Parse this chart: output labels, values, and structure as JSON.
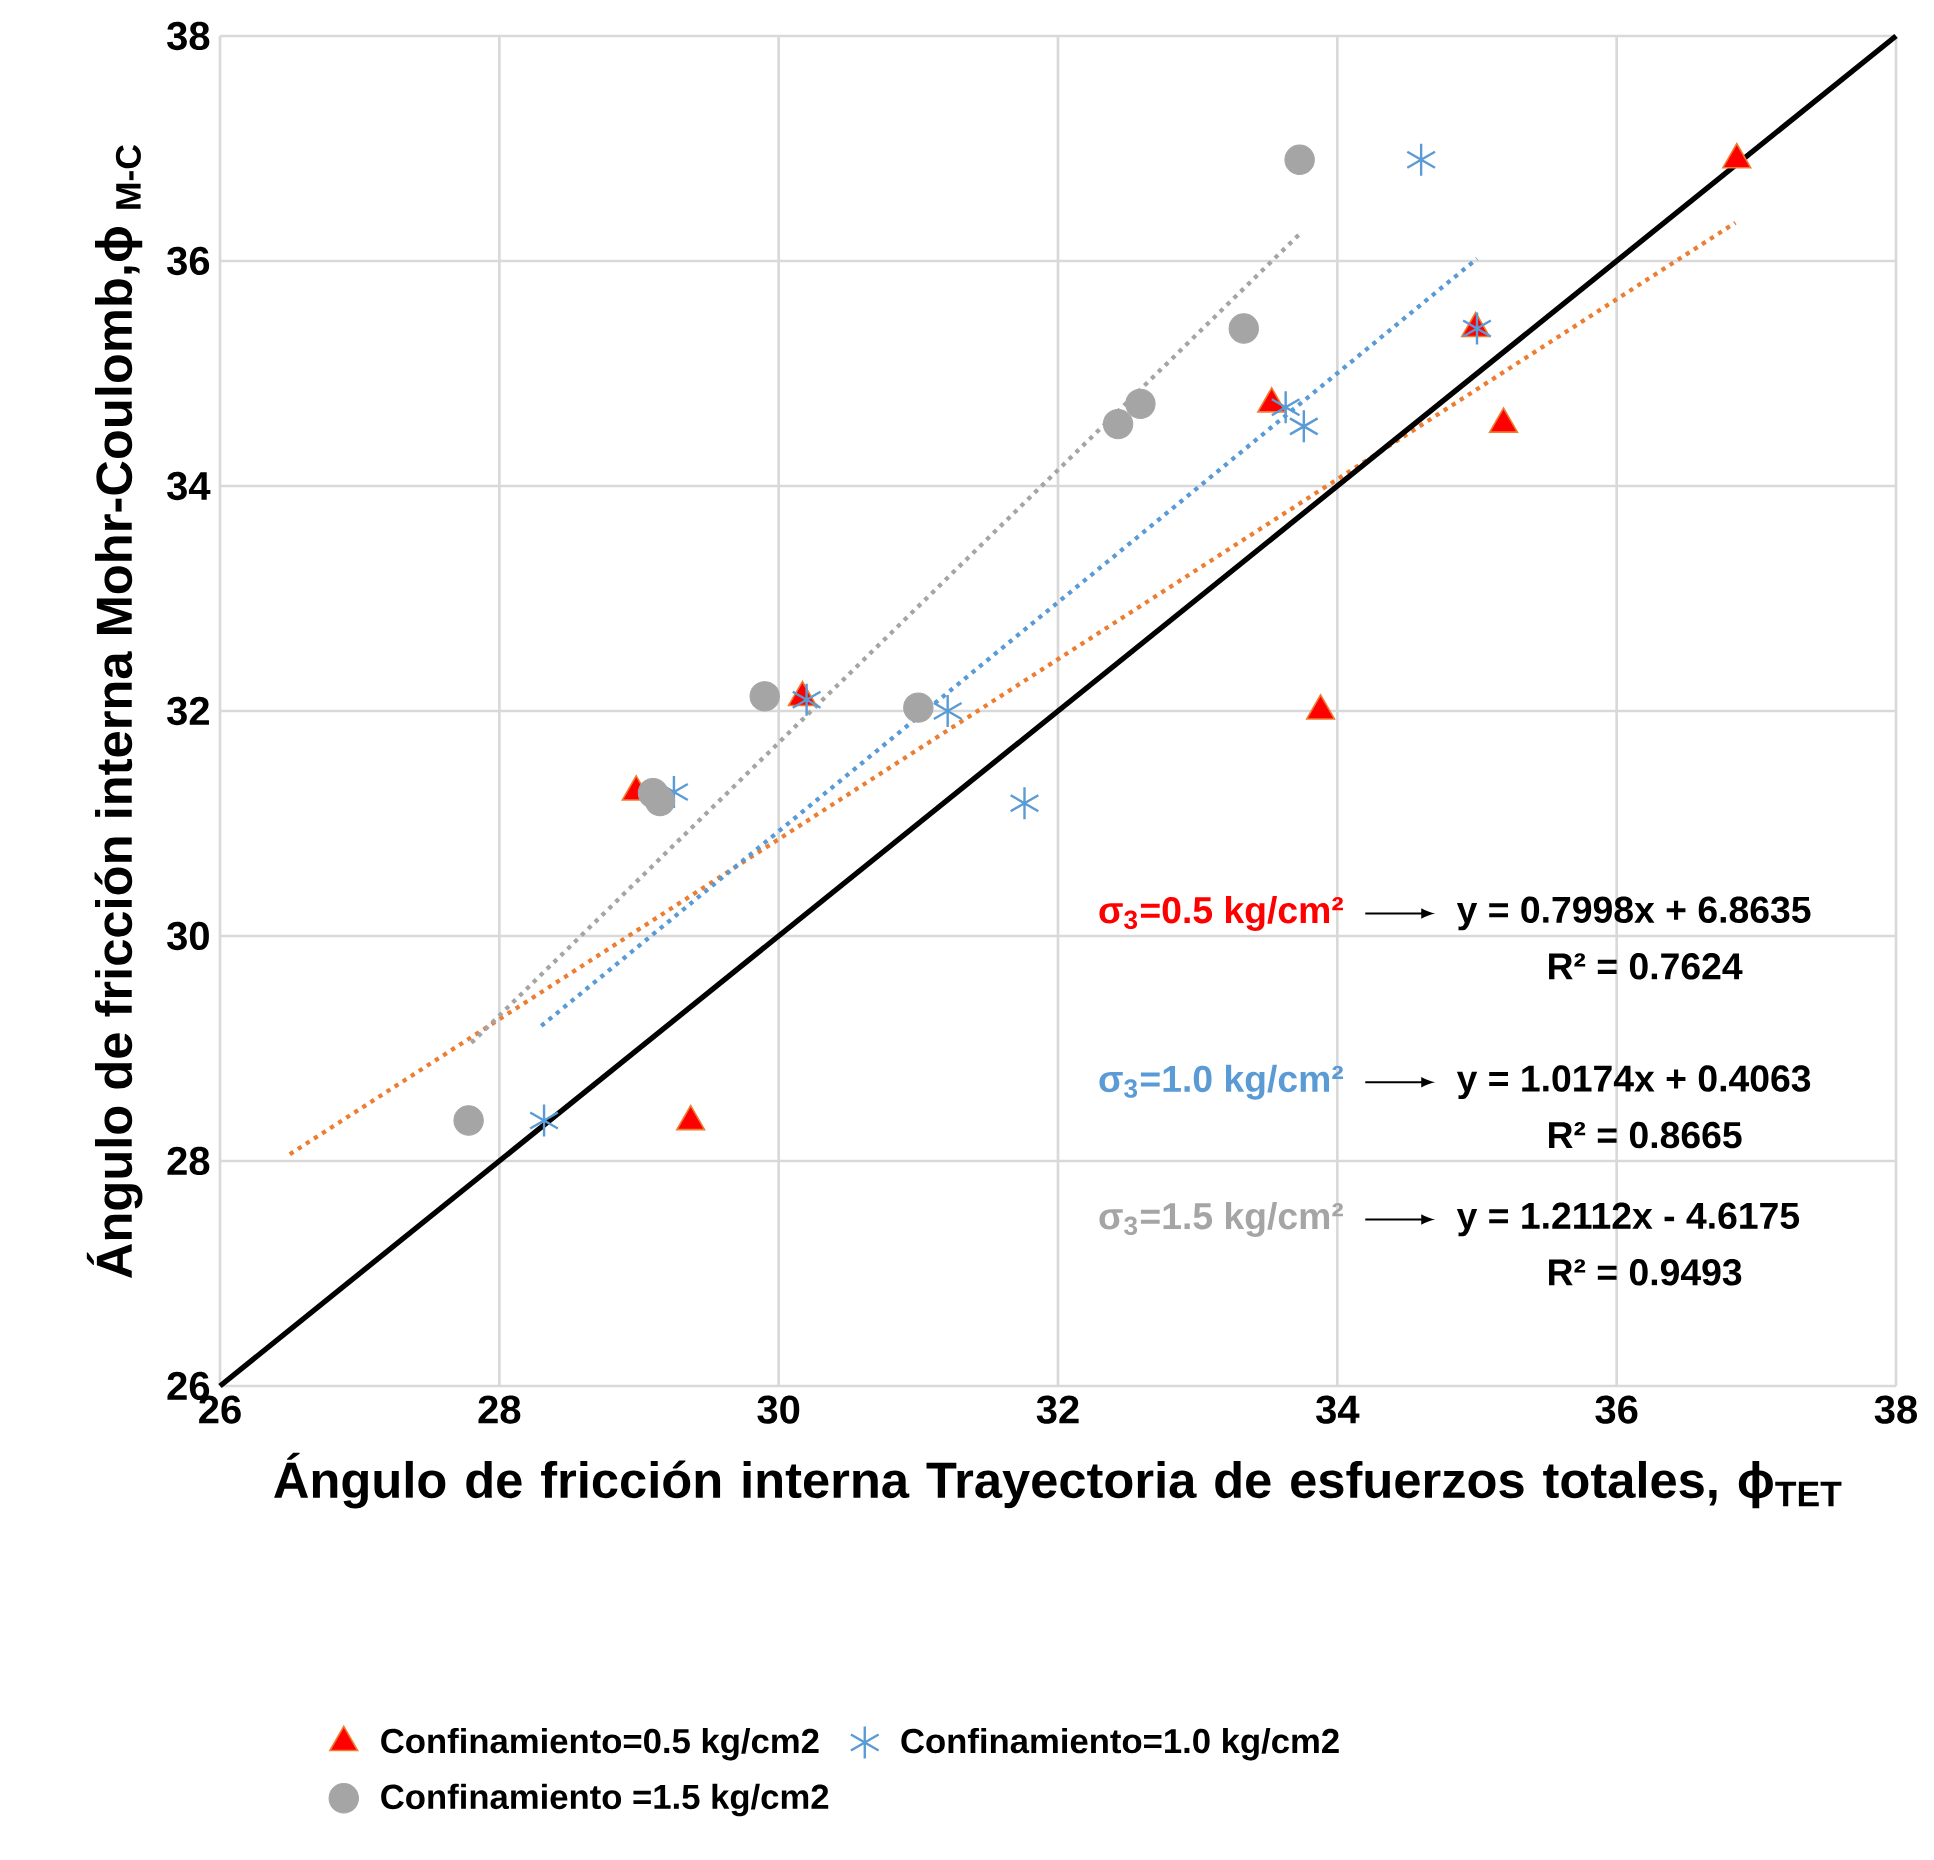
{
  "chart_data": {
    "type": "scatter",
    "xlabel": "Ángulo de fricción interna Trayectoria de esfuerzos totales, ϕ$_{TET}$",
    "ylabel": "Ángulo de fricción interna Mohr-Coulomb,ϕ $_{M-C}$",
    "xlim": [
      26,
      38
    ],
    "ylim": [
      26,
      38
    ],
    "xticks": [
      26,
      28,
      30,
      32,
      34,
      36,
      38
    ],
    "yticks": [
      26,
      28,
      30,
      32,
      34,
      36,
      38
    ],
    "grid": true,
    "legend": "bottom",
    "series": [
      {
        "name": "Confinamiento=0.5 kg/cm2",
        "marker": "triangle",
        "color": "#ff0000",
        "x": [
          28.98,
          30.17,
          29.37,
          33.53,
          33.88,
          35.19,
          34.99,
          36.86
        ],
        "values": [
          31.28,
          32.12,
          28.35,
          34.73,
          32.0,
          34.55,
          35.4,
          36.9
        ]
      },
      {
        "name": "Confinamiento=1.0 kg/cm2",
        "marker": "cross",
        "color": "#5b9bd5",
        "x": [
          28.32,
          29.25,
          30.2,
          31.21,
          31.76,
          33.63,
          33.76,
          35.0,
          34.6
        ],
        "values": [
          28.36,
          31.28,
          32.1,
          32.0,
          31.18,
          34.7,
          34.53,
          35.4,
          36.9
        ]
      },
      {
        "name": "Confinamiento =1.5 kg/cm2",
        "marker": "circle",
        "color": "#a5a5a5",
        "x": [
          27.78,
          29.1,
          29.15,
          29.9,
          31.0,
          32.43,
          32.59,
          33.33,
          33.73
        ],
        "values": [
          28.36,
          31.27,
          31.2,
          32.13,
          32.03,
          34.55,
          34.73,
          35.4,
          36.9
        ]
      },
      {
        "type": "line",
        "line_style": "dotted",
        "marker": "none",
        "color": "#ed7d31",
        "x": [
          26.5,
          36.85
        ],
        "values": [
          28.06,
          36.34
        ]
      },
      {
        "type": "line",
        "line_style": "dotted",
        "marker": "none",
        "color": "#5b9bd5",
        "x": [
          28.3,
          35.0
        ],
        "values": [
          29.2,
          36.02
        ]
      },
      {
        "type": "line",
        "line_style": "dotted",
        "marker": "none",
        "color": "#a5a5a5",
        "x": [
          27.8,
          33.73
        ],
        "values": [
          29.05,
          36.24
        ]
      },
      {
        "type": "line",
        "line_style": "solid",
        "marker": "none",
        "color": "#000000",
        "x": [
          26,
          38
        ],
        "values": [
          26,
          38
        ]
      }
    ],
    "annotations": [
      "σ$_{3}$=0.5 kg/cm²",
      "y = 0.7998x + 6.8635",
      "R² = 0.7624",
      "σ$_{3}$=1.0 kg/cm²",
      "y = 1.0174x + 0.4063",
      "R² = 0.8665",
      "σ$_{3}$=1.5 kg/cm²",
      "y = 1.2112x - 4.6175",
      "R² = 0.9493"
    ]
  }
}
